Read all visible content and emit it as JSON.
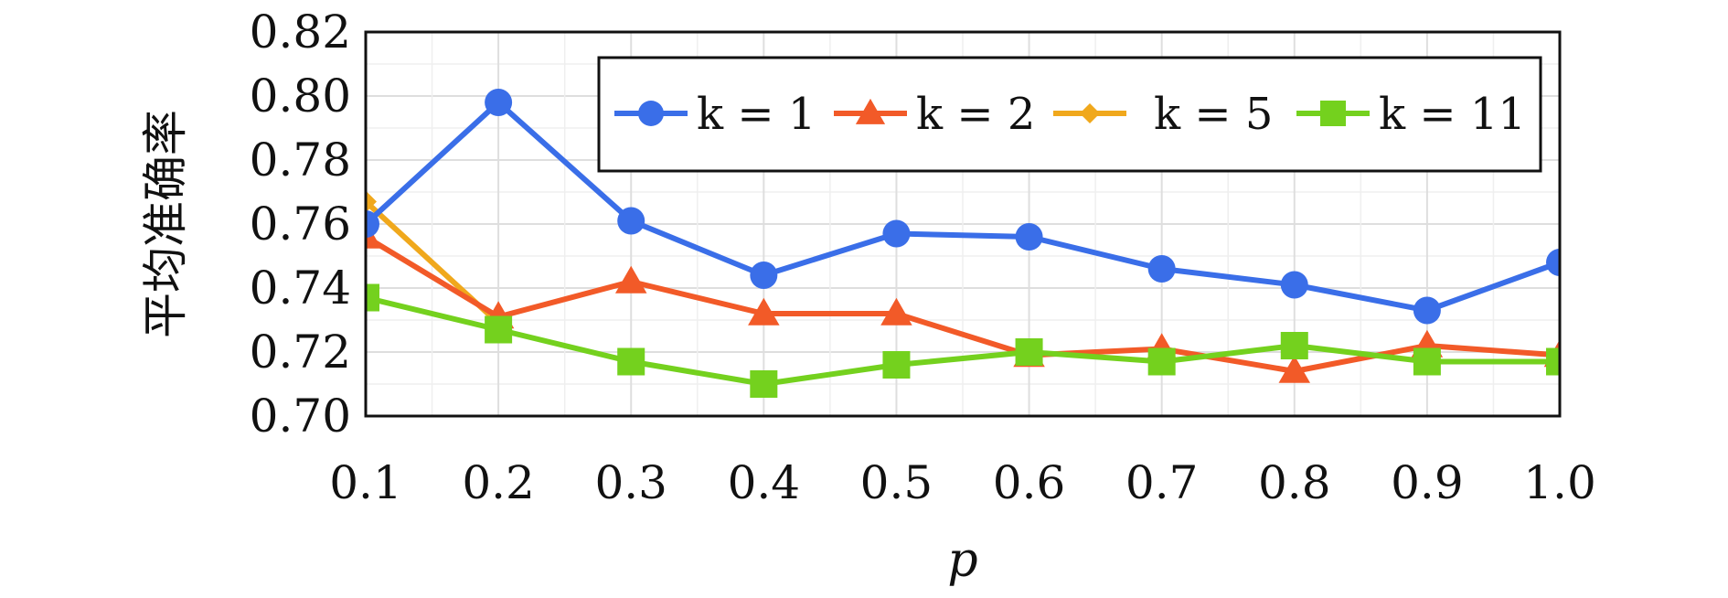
{
  "chart_data": {
    "type": "line",
    "title": "",
    "xlabel": "p",
    "ylabel": "平均准确率",
    "xlim": [
      0.1,
      1.0
    ],
    "ylim": [
      0.7,
      0.82
    ],
    "x": [
      0.1,
      0.2,
      0.3,
      0.4,
      0.5,
      0.6,
      0.7,
      0.8,
      0.9,
      1.0
    ],
    "x_tick_labels": [
      "0.1",
      "0.2",
      "0.3",
      "0.4",
      "0.5",
      "0.6",
      "0.7",
      "0.8",
      "0.9",
      "1.0"
    ],
    "y_ticks": [
      0.7,
      0.72,
      0.74,
      0.76,
      0.78,
      0.8,
      0.82
    ],
    "y_tick_labels": [
      "0.70",
      "0.72",
      "0.74",
      "0.76",
      "0.78",
      "0.80",
      "0.82"
    ],
    "grid": true,
    "legend_position": "top-right",
    "series": [
      {
        "name": "k = 1",
        "var": "k",
        "val": "1",
        "marker": "circle",
        "color": "#3a6ee8",
        "values": [
          0.76,
          0.798,
          0.761,
          0.744,
          0.757,
          0.756,
          0.746,
          0.741,
          0.733,
          0.748
        ]
      },
      {
        "name": "k = 2",
        "var": "k",
        "val": "2",
        "marker": "triangle",
        "color": "#f25a28",
        "values": [
          0.756,
          0.731,
          0.742,
          0.732,
          0.732,
          0.719,
          0.721,
          0.714,
          0.722,
          0.719
        ]
      },
      {
        "name": "k = 5",
        "var": "k",
        "val": "5",
        "marker": "diamond",
        "color": "#f0a81c",
        "values": [
          0.767,
          0.729,
          null,
          null,
          null,
          null,
          null,
          null,
          null,
          null
        ]
      },
      {
        "name": "k = 11",
        "var": "k",
        "val": "11",
        "marker": "square",
        "color": "#74d11e",
        "values": [
          0.737,
          0.727,
          0.717,
          0.71,
          0.716,
          0.72,
          0.717,
          0.722,
          0.717,
          0.717
        ]
      }
    ]
  }
}
